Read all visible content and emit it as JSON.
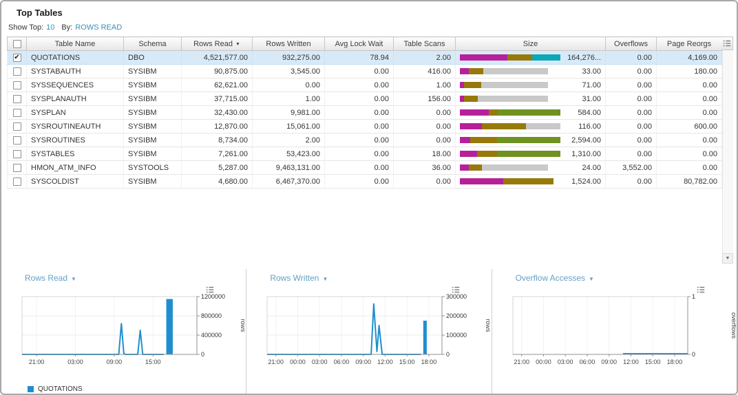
{
  "colors": {
    "accent_blue": "#1f8ed0",
    "link_teal": "#3890b4",
    "title_blue": "#64a0c6",
    "bar_magenta": "#b6209b",
    "bar_olive": "#97790b",
    "bar_gray": "#c9c9c9",
    "bar_green": "#6f9220",
    "bar_teal": "#0da8b6"
  },
  "icons": {
    "caret_down": "▼",
    "checkmark": "✔"
  },
  "header": {
    "title": "Top Tables",
    "show_top_label": "Show Top:",
    "show_top_value": "10",
    "by_label": "By:",
    "by_value": "ROWS READ"
  },
  "table": {
    "columns": [
      {
        "key": "name",
        "label": "Table Name"
      },
      {
        "key": "schema",
        "label": "Schema"
      },
      {
        "key": "rows_read",
        "label": "Rows Read",
        "sorted": "desc"
      },
      {
        "key": "rows_written",
        "label": "Rows Written"
      },
      {
        "key": "avg_lock_wait",
        "label": "Avg Lock Wait"
      },
      {
        "key": "table_scans",
        "label": "Table Scans"
      },
      {
        "key": "size",
        "label": "Size"
      },
      {
        "key": "overflows",
        "label": "Overflows"
      },
      {
        "key": "page_reorgs",
        "label": "Page Reorgs"
      }
    ],
    "rows": [
      {
        "checked": true,
        "selected": true,
        "name": "QUOTATIONS",
        "schema": "DBO",
        "rows_read": "4,521,577.00",
        "rows_written": "932,275.00",
        "avg_lock_wait": "78.94",
        "table_scans": "2.00",
        "size": "164,276...",
        "overflows": "0.00",
        "page_reorgs": "4,169.00",
        "size_bar": [
          {
            "c": "bar_magenta",
            "w": 47
          },
          {
            "c": "bar_olive",
            "w": 25
          },
          {
            "c": "bar_teal",
            "w": 28
          }
        ]
      },
      {
        "checked": false,
        "selected": false,
        "name": "SYSTABAUTH",
        "schema": "SYSIBM",
        "rows_read": "90,875.00",
        "rows_written": "3,545.00",
        "avg_lock_wait": "0.00",
        "table_scans": "416.00",
        "size": "33.00",
        "overflows": "0.00",
        "page_reorgs": "180.00",
        "size_bar": [
          {
            "c": "bar_magenta",
            "w": 9
          },
          {
            "c": "bar_olive",
            "w": 14
          },
          {
            "c": "bar_gray",
            "w": 65
          }
        ]
      },
      {
        "checked": false,
        "selected": false,
        "name": "SYSSEQUENCES",
        "schema": "SYSIBM",
        "rows_read": "62,621.00",
        "rows_written": "0.00",
        "avg_lock_wait": "0.00",
        "table_scans": "1.00",
        "size": "71.00",
        "overflows": "0.00",
        "page_reorgs": "0.00",
        "size_bar": [
          {
            "c": "bar_magenta",
            "w": 4
          },
          {
            "c": "bar_olive",
            "w": 17
          },
          {
            "c": "bar_gray",
            "w": 67
          }
        ]
      },
      {
        "checked": false,
        "selected": false,
        "name": "SYSPLANAUTH",
        "schema": "SYSIBM",
        "rows_read": "37,715.00",
        "rows_written": "1.00",
        "avg_lock_wait": "0.00",
        "table_scans": "156.00",
        "size": "31.00",
        "overflows": "0.00",
        "page_reorgs": "0.00",
        "size_bar": [
          {
            "c": "bar_magenta",
            "w": 4
          },
          {
            "c": "bar_olive",
            "w": 14
          },
          {
            "c": "bar_gray",
            "w": 70
          }
        ]
      },
      {
        "checked": false,
        "selected": false,
        "name": "SYSPLAN",
        "schema": "SYSIBM",
        "rows_read": "32,430.00",
        "rows_written": "9,981.00",
        "avg_lock_wait": "0.00",
        "table_scans": "0.00",
        "size": "584.00",
        "overflows": "0.00",
        "page_reorgs": "0.00",
        "size_bar": [
          {
            "c": "bar_magenta",
            "w": 29
          },
          {
            "c": "bar_olive",
            "w": 9
          },
          {
            "c": "bar_green",
            "w": 62
          }
        ]
      },
      {
        "checked": false,
        "selected": false,
        "name": "SYSROUTINEAUTH",
        "schema": "SYSIBM",
        "rows_read": "12,870.00",
        "rows_written": "15,061.00",
        "avg_lock_wait": "0.00",
        "table_scans": "0.00",
        "size": "116.00",
        "overflows": "0.00",
        "page_reorgs": "600.00",
        "size_bar": [
          {
            "c": "bar_magenta",
            "w": 22
          },
          {
            "c": "bar_olive",
            "w": 44
          },
          {
            "c": "bar_gray",
            "w": 34
          }
        ]
      },
      {
        "checked": false,
        "selected": false,
        "name": "SYSROUTINES",
        "schema": "SYSIBM",
        "rows_read": "8,734.00",
        "rows_written": "2.00",
        "avg_lock_wait": "0.00",
        "table_scans": "0.00",
        "size": "2,594.00",
        "overflows": "0.00",
        "page_reorgs": "0.00",
        "size_bar": [
          {
            "c": "bar_magenta",
            "w": 10
          },
          {
            "c": "bar_olive",
            "w": 27
          },
          {
            "c": "bar_green",
            "w": 63
          }
        ]
      },
      {
        "checked": false,
        "selected": false,
        "name": "SYSTABLES",
        "schema": "SYSIBM",
        "rows_read": "7,261.00",
        "rows_written": "53,423.00",
        "avg_lock_wait": "0.00",
        "table_scans": "18.00",
        "size": "1,310.00",
        "overflows": "0.00",
        "page_reorgs": "0.00",
        "size_bar": [
          {
            "c": "bar_magenta",
            "w": 17
          },
          {
            "c": "bar_olive",
            "w": 21
          },
          {
            "c": "bar_green",
            "w": 62
          }
        ]
      },
      {
        "checked": false,
        "selected": false,
        "name": "HMON_ATM_INFO",
        "schema": "SYSTOOLS",
        "rows_read": "5,287.00",
        "rows_written": "9,463,131.00",
        "avg_lock_wait": "0.00",
        "table_scans": "36.00",
        "size": "24.00",
        "overflows": "3,552.00",
        "page_reorgs": "0.00",
        "size_bar": [
          {
            "c": "bar_magenta",
            "w": 9
          },
          {
            "c": "bar_olive",
            "w": 13
          },
          {
            "c": "bar_gray",
            "w": 66
          }
        ]
      },
      {
        "checked": false,
        "selected": false,
        "name": "SYSCOLDIST",
        "schema": "SYSIBM",
        "rows_read": "4,680.00",
        "rows_written": "6,467,370.00",
        "avg_lock_wait": "0.00",
        "table_scans": "0.00",
        "size": "1,524.00",
        "overflows": "0.00",
        "page_reorgs": "80,782.00",
        "size_bar": [
          {
            "c": "bar_magenta",
            "w": 43
          },
          {
            "c": "bar_olive",
            "w": 50
          }
        ]
      }
    ]
  },
  "chart_data": [
    {
      "type": "line",
      "title": "Rows Read",
      "ylabel": "rows",
      "series_name": "QUOTATIONS",
      "ymax": 1200000,
      "yticks": [
        {
          "v": 0,
          "label": "0"
        },
        {
          "v": 400000,
          "label": "400000"
        },
        {
          "v": 800000,
          "label": "800000"
        },
        {
          "v": 1200000,
          "label": "1200000"
        }
      ],
      "xticks": [
        {
          "x": 0.083,
          "label": "21:00"
        },
        {
          "x": 0.305,
          "label": "03:00"
        },
        {
          "x": 0.527,
          "label": "09:00"
        },
        {
          "x": 0.749,
          "label": "15:00"
        }
      ],
      "line": [
        [
          0,
          0
        ],
        [
          0.553,
          0
        ],
        [
          0.568,
          640000
        ],
        [
          0.582,
          25000
        ],
        [
          0.59,
          0
        ],
        [
          0.662,
          0
        ],
        [
          0.676,
          500000
        ],
        [
          0.69,
          0
        ],
        [
          0.81,
          0
        ]
      ],
      "bars": [
        {
          "x0": 0.825,
          "x1": 0.862,
          "v": 1150000
        }
      ]
    },
    {
      "type": "line",
      "title": "Rows Written",
      "ylabel": "rows",
      "series_name": "QUOTATIONS",
      "ymax": 300000,
      "yticks": [
        {
          "v": 0,
          "label": "0"
        },
        {
          "v": 100000,
          "label": "100000"
        },
        {
          "v": 200000,
          "label": "200000"
        },
        {
          "v": 300000,
          "label": "300000"
        }
      ],
      "xticks": [
        {
          "x": 0.05,
          "label": "21:00"
        },
        {
          "x": 0.175,
          "label": "00:00"
        },
        {
          "x": 0.3,
          "label": "03:00"
        },
        {
          "x": 0.425,
          "label": "06:00"
        },
        {
          "x": 0.55,
          "label": "09:00"
        },
        {
          "x": 0.675,
          "label": "12:00"
        },
        {
          "x": 0.8,
          "label": "15:00"
        },
        {
          "x": 0.925,
          "label": "18:00"
        }
      ],
      "line": [
        [
          0,
          0
        ],
        [
          0.595,
          0
        ],
        [
          0.61,
          262000
        ],
        [
          0.628,
          15000
        ],
        [
          0.64,
          150000
        ],
        [
          0.658,
          0
        ],
        [
          0.88,
          0
        ]
      ],
      "bars": [
        {
          "x0": 0.893,
          "x1": 0.913,
          "v": 175000
        }
      ]
    },
    {
      "type": "line",
      "title": "Overflow Accesses",
      "ylabel": "overflows",
      "series_name": "QUOTATIONS",
      "ymax": 1,
      "yticks": [
        {
          "v": 0,
          "label": "0"
        },
        {
          "v": 1,
          "label": "1"
        }
      ],
      "xticks": [
        {
          "x": 0.05,
          "label": "21:00"
        },
        {
          "x": 0.175,
          "label": "00:00"
        },
        {
          "x": 0.3,
          "label": "03:00"
        },
        {
          "x": 0.425,
          "label": "06:00"
        },
        {
          "x": 0.55,
          "label": "09:00"
        },
        {
          "x": 0.675,
          "label": "12:00"
        },
        {
          "x": 0.8,
          "label": "15:00"
        },
        {
          "x": 0.925,
          "label": "18:00"
        }
      ],
      "line": [
        [
          0.63,
          0.012
        ],
        [
          1.0,
          0.012
        ]
      ],
      "bars": []
    }
  ],
  "legend": {
    "label": "QUOTATIONS"
  }
}
